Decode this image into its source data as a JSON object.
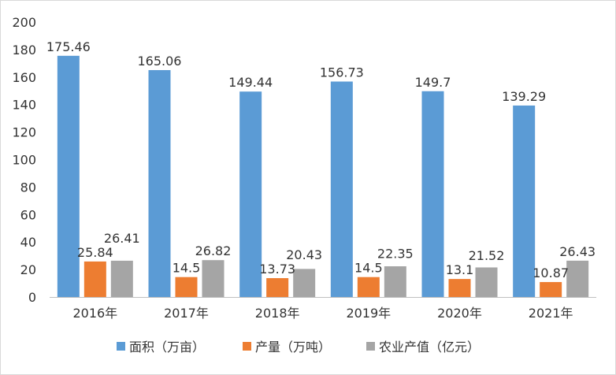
{
  "chart_data": {
    "type": "bar",
    "title": "",
    "xlabel": "",
    "ylabel": "",
    "categories": [
      "2016年",
      "2017年",
      "2018年",
      "2019年",
      "2020年",
      "2021年"
    ],
    "series": [
      {
        "name": "面积（万亩）",
        "color": "#5B9BD5",
        "values": [
          175.46,
          165.06,
          149.44,
          156.73,
          149.7,
          139.29
        ]
      },
      {
        "name": "产量（万吨）",
        "color": "#ED7D31",
        "values": [
          25.84,
          14.5,
          13.73,
          14.5,
          13.1,
          10.87
        ]
      },
      {
        "name": "农业产值（亿元）",
        "color": "#A5A5A5",
        "values": [
          26.41,
          26.82,
          20.43,
          22.35,
          21.52,
          26.43
        ]
      }
    ],
    "ylim": [
      0,
      200
    ],
    "yticks": [
      0,
      20,
      40,
      60,
      80,
      100,
      120,
      140,
      160,
      180,
      200
    ],
    "grid": false,
    "data_labels": true,
    "legend": "bottom"
  }
}
